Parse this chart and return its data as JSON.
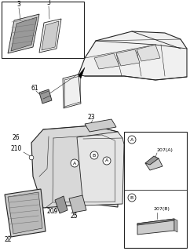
{
  "bg_color": "#ffffff",
  "border_color": "#222222",
  "line_color": "#444444",
  "fill_light": "#f0f0f0",
  "fill_mid": "#cccccc",
  "fill_dark": "#999999",
  "hatch_color": "#777777",
  "font_size": 5.5,
  "font_size_sm": 4.5,
  "lw_thick": 0.8,
  "lw_mid": 0.6,
  "lw_thin": 0.4,
  "labels": {
    "item3": "3",
    "item61": "61",
    "item22": "22",
    "item23": "23",
    "item25": "25",
    "item26": "26",
    "item209": "209",
    "item210": "210",
    "item207A": "207(A)",
    "item207B": "207(B)",
    "circA": "A",
    "circB": "B"
  }
}
